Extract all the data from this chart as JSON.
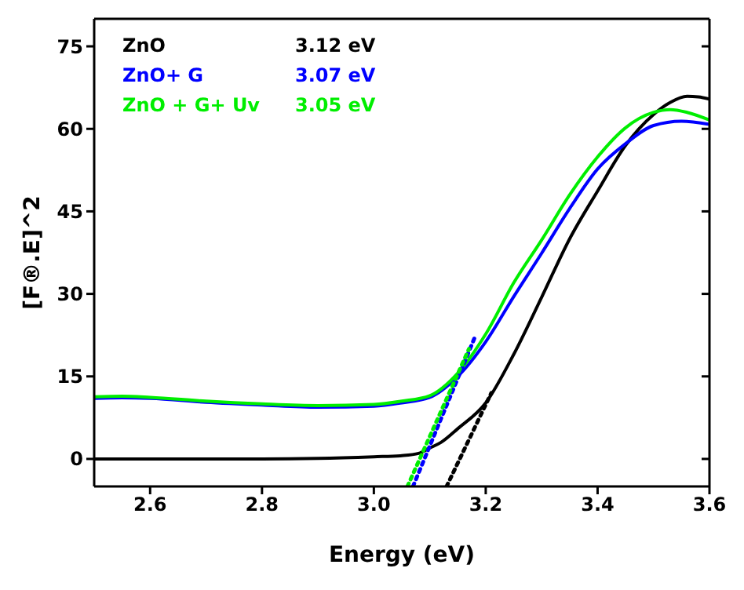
{
  "chart_data": {
    "type": "line",
    "xlabel": "Energy (eV)",
    "ylabel": "[F®.E]^2",
    "xlim": [
      2.5,
      3.6
    ],
    "ylim": [
      -5,
      80
    ],
    "xticks": [
      2.6,
      2.8,
      {
        "value": 3,
        "label": "3.0"
      },
      3.2,
      3.4,
      3.6
    ],
    "yticks": [
      0,
      15,
      30,
      45,
      60,
      75
    ],
    "legend": "top left",
    "marker": "none",
    "annotations": [
      "3.12 eV",
      "3.07 eV",
      "3.05 eV"
    ],
    "series": [
      {
        "name": "ZnO",
        "color": "#000000",
        "line_style": "solid",
        "x": [
          2.5,
          2.6,
          2.7,
          2.8,
          2.9,
          3.0,
          3.05,
          3.08,
          3.1,
          3.12,
          3.15,
          3.2,
          3.25,
          3.3,
          3.35,
          3.4,
          3.45,
          3.5,
          3.53,
          3.56,
          3.58,
          3.6
        ],
        "values": [
          0,
          0,
          0,
          0,
          0.1,
          0.4,
          0.6,
          1,
          2,
          3,
          5.5,
          10.2,
          19,
          29.4,
          40,
          48.7,
          57,
          62.6,
          64.8,
          65.9,
          65.8,
          65.4
        ]
      },
      {
        "name": "ZnO+ G",
        "color": "#0000ff",
        "line_style": "solid",
        "x": [
          2.5,
          2.55,
          2.6,
          2.7,
          2.8,
          2.9,
          3.0,
          3.05,
          3.1,
          3.15,
          3.2,
          3.25,
          3.3,
          3.35,
          3.4,
          3.45,
          3.5,
          3.55,
          3.6
        ],
        "values": [
          11,
          11.1,
          11,
          10.3,
          9.8,
          9.4,
          9.6,
          10.2,
          11.2,
          15,
          21.3,
          29.5,
          37.4,
          45.5,
          52.7,
          57.3,
          60.6,
          61.4,
          60.8
        ]
      },
      {
        "name": "ZnO + G+ Uv",
        "color": "#00ee00",
        "line_style": "solid",
        "x": [
          2.5,
          2.55,
          2.6,
          2.7,
          2.8,
          2.9,
          3.0,
          3.05,
          3.1,
          3.15,
          3.2,
          3.25,
          3.3,
          3.35,
          3.4,
          3.45,
          3.5,
          3.53,
          3.56,
          3.6
        ],
        "values": [
          11.3,
          11.4,
          11.2,
          10.5,
          10,
          9.7,
          9.9,
          10.5,
          11.5,
          15.6,
          22.7,
          32,
          39.8,
          48,
          54.9,
          60.2,
          63,
          63.5,
          63,
          61.6
        ]
      },
      {
        "type": "line",
        "color": "#000000",
        "line_style": "dotted",
        "x": [
          3.13,
          3.21
        ],
        "values": [
          -5,
          12
        ]
      },
      {
        "type": "line",
        "color": "#0000ff",
        "line_style": "dotted",
        "x": [
          3.07,
          3.18
        ],
        "values": [
          -5,
          22
        ]
      },
      {
        "type": "line",
        "color": "#00ee00",
        "line_style": "dotted",
        "x": [
          3.06,
          3.17
        ],
        "values": [
          -5,
          20
        ]
      }
    ]
  }
}
